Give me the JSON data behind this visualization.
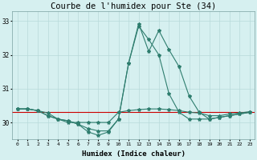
{
  "title": "Courbe de l'humidex pour Ste (34)",
  "xlabel": "Humidex (Indice chaleur)",
  "x": [
    0,
    1,
    2,
    3,
    4,
    5,
    6,
    7,
    8,
    9,
    10,
    11,
    12,
    13,
    14,
    15,
    16,
    17,
    18,
    19,
    20,
    21,
    22,
    23
  ],
  "line1": [
    30.4,
    30.4,
    30.35,
    30.28,
    30.1,
    30.0,
    30.0,
    30.0,
    30.0,
    30.0,
    30.3,
    30.35,
    30.38,
    30.4,
    30.4,
    30.38,
    30.35,
    30.3,
    30.28,
    30.2,
    30.2,
    30.25,
    30.28,
    30.32
  ],
  "line2": [
    30.4,
    30.4,
    30.35,
    30.2,
    30.1,
    30.05,
    29.95,
    29.82,
    29.75,
    29.75,
    30.1,
    31.75,
    32.85,
    32.45,
    32.0,
    30.85,
    30.3,
    30.1,
    30.1,
    30.1,
    30.15,
    30.2,
    30.25,
    30.3
  ],
  "line3": [
    30.4,
    30.4,
    30.35,
    30.2,
    30.1,
    30.05,
    29.95,
    29.72,
    29.62,
    29.72,
    30.1,
    31.75,
    32.92,
    32.1,
    32.72,
    32.15,
    31.65,
    30.78,
    30.3,
    30.1,
    30.15,
    30.2,
    30.25,
    30.3
  ],
  "ylim": [
    29.5,
    33.3
  ],
  "yticks": [
    30,
    31,
    32,
    33
  ],
  "line_color": "#2e7d6e",
  "bg_color": "#d6f0f0",
  "grid_color": "#b8dada",
  "ref_line_color": "#cc0000",
  "ref_line_y": 30.32,
  "title_fontsize": 7.5
}
